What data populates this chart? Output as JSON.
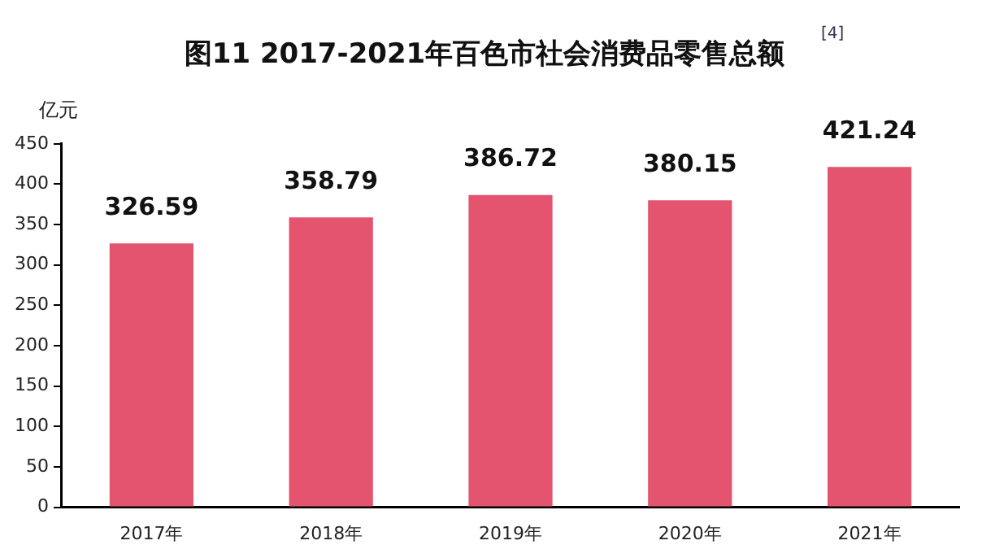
{
  "chart_data": {
    "type": "bar",
    "title": "图11 2017-2021年百色市社会消费品零售总额",
    "ylabel": "亿元",
    "annotations": [
      "[4]"
    ],
    "categories": [
      "2017年",
      "2018年",
      "2019年",
      "2020年",
      "2021年"
    ],
    "values": [
      326.59,
      358.79,
      386.72,
      380.15,
      421.24
    ],
    "color": "#e5546e",
    "ylim": [
      0,
      450
    ],
    "yticks": [
      0,
      50,
      100,
      150,
      200,
      250,
      300,
      350,
      400,
      450
    ],
    "grid": false,
    "legend": false,
    "data_labels": true
  }
}
